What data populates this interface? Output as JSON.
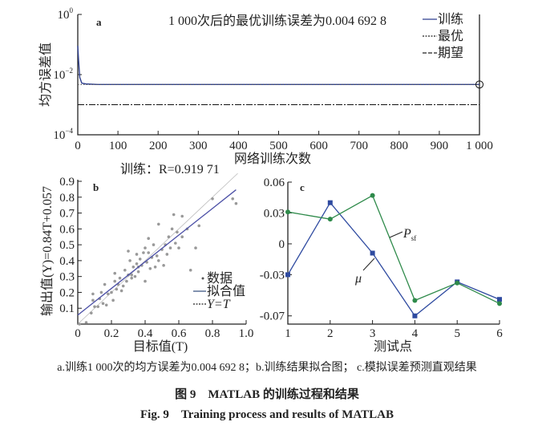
{
  "chart_data": [
    {
      "type": "line",
      "panel_label": "a",
      "title": "1 000次后的最优训练误差为0.004 692 8",
      "xlabel": "网络训练次数",
      "ylabel": "均方误差值",
      "xlim": [
        0,
        1000
      ],
      "xticks": [
        "0",
        "100",
        "200",
        "300",
        "400",
        "500",
        "600",
        "700",
        "800",
        "900",
        "1 000"
      ],
      "yscale": "log",
      "ylim": [
        0.0001,
        1
      ],
      "yticks": [
        {
          "base": "10",
          "exp": "0"
        },
        {
          "base": "10",
          "exp": "-2"
        },
        {
          "base": "10",
          "exp": "-4"
        }
      ],
      "legend": [
        "训练",
        "最优",
        "期望"
      ],
      "legend_position": "top-right",
      "series": [
        {
          "name": "训练",
          "color": "#2e3f8f",
          "x": [
            0,
            2,
            5,
            10,
            20,
            50,
            100,
            1000
          ],
          "y": [
            0.09,
            0.03,
            0.008,
            0.0052,
            0.0049,
            0.0047,
            0.0047,
            0.0046928
          ]
        },
        {
          "name": "最优",
          "style": "dotted",
          "y_const": 0.0046928
        },
        {
          "name": "期望",
          "style": "dash-dot",
          "y_const": 0.001
        }
      ],
      "best_marker": {
        "x": 1000,
        "y": 0.0046928
      }
    },
    {
      "type": "scatter",
      "panel_label": "b",
      "title": "训练：R=0.919 71",
      "xlabel": "目标值(T)",
      "ylabel": "输出值(Y)=0.84T+0.057",
      "xlim": [
        0,
        1.0
      ],
      "ylim": [
        0,
        0.9
      ],
      "xticks": [
        "0",
        "0.2",
        "0.4",
        "0.6",
        "0.8",
        "1.0"
      ],
      "yticks": [
        "0.1",
        "0.2",
        "0.3",
        "0.4",
        "0.5",
        "0.6",
        "0.7",
        "0.8",
        "0.9"
      ],
      "legend": [
        "数据",
        "拟合值",
        "Y=T"
      ],
      "legend_position": "bottom-right",
      "fit": {
        "slope": 0.84,
        "intercept": 0.057,
        "color": "#4b4fa6"
      },
      "points": [
        [
          0.01,
          0.0
        ],
        [
          0.05,
          0.01
        ],
        [
          0.08,
          0.07
        ],
        [
          0.09,
          0.15
        ],
        [
          0.09,
          0.19
        ],
        [
          0.1,
          0.11
        ],
        [
          0.12,
          0.11
        ],
        [
          0.13,
          0.16
        ],
        [
          0.14,
          0.2
        ],
        [
          0.15,
          0.13
        ],
        [
          0.16,
          0.25
        ],
        [
          0.17,
          0.12
        ],
        [
          0.18,
          0.19
        ],
        [
          0.2,
          0.2
        ],
        [
          0.21,
          0.15
        ],
        [
          0.22,
          0.27
        ],
        [
          0.22,
          0.32
        ],
        [
          0.23,
          0.22
        ],
        [
          0.24,
          0.25
        ],
        [
          0.25,
          0.29
        ],
        [
          0.26,
          0.21
        ],
        [
          0.27,
          0.24
        ],
        [
          0.28,
          0.34
        ],
        [
          0.29,
          0.27
        ],
        [
          0.3,
          0.31
        ],
        [
          0.3,
          0.46
        ],
        [
          0.31,
          0.4
        ],
        [
          0.32,
          0.29
        ],
        [
          0.33,
          0.36
        ],
        [
          0.34,
          0.3
        ],
        [
          0.35,
          0.38
        ],
        [
          0.35,
          0.44
        ],
        [
          0.36,
          0.33
        ],
        [
          0.37,
          0.41
        ],
        [
          0.38,
          0.37
        ],
        [
          0.39,
          0.45
        ],
        [
          0.4,
          0.27
        ],
        [
          0.4,
          0.48
        ],
        [
          0.41,
          0.39
        ],
        [
          0.42,
          0.45
        ],
        [
          0.42,
          0.54
        ],
        [
          0.43,
          0.35
        ],
        [
          0.44,
          0.42
        ],
        [
          0.45,
          0.5
        ],
        [
          0.46,
          0.36
        ],
        [
          0.47,
          0.43
        ],
        [
          0.48,
          0.63
        ],
        [
          0.48,
          0.4
        ],
        [
          0.5,
          0.47
        ],
        [
          0.51,
          0.37
        ],
        [
          0.52,
          0.5
        ],
        [
          0.53,
          0.44
        ],
        [
          0.54,
          0.55
        ],
        [
          0.55,
          0.48
        ],
        [
          0.56,
          0.6
        ],
        [
          0.57,
          0.69
        ],
        [
          0.58,
          0.51
        ],
        [
          0.59,
          0.58
        ],
        [
          0.6,
          0.48
        ],
        [
          0.62,
          0.68
        ],
        [
          0.62,
          0.55
        ],
        [
          0.65,
          0.6
        ],
        [
          0.67,
          0.34
        ],
        [
          0.7,
          0.48
        ],
        [
          0.72,
          0.62
        ],
        [
          0.8,
          0.79
        ],
        [
          0.92,
          0.79
        ],
        [
          0.94,
          0.76
        ],
        [
          0.32,
          0.31
        ],
        [
          0.36,
          0.36
        ]
      ]
    },
    {
      "type": "line",
      "panel_label": "c",
      "xlabel": "测试点",
      "ylabel": "",
      "x": [
        1,
        2,
        3,
        4,
        5,
        6
      ],
      "xticks": [
        "1",
        "2",
        "3",
        "4",
        "5",
        "6"
      ],
      "yticks": [
        {
          "v": 0.06,
          "label": "0.06"
        },
        {
          "v": 0.03,
          "label": "0.03"
        },
        {
          "v": 0,
          "label": "0"
        },
        {
          "v": -0.03,
          "label": "-0.03"
        },
        {
          "v": -0.07,
          "label": "-0.07"
        }
      ],
      "ylim": [
        -0.078,
        0.06
      ],
      "series": [
        {
          "name": "μ",
          "marker": "square",
          "color": "#2e4aa0",
          "values": [
            -0.03,
            0.04,
            -0.009,
            -0.07,
            -0.037,
            -0.054
          ]
        },
        {
          "name": "P",
          "subscript": "sf",
          "marker": "circle",
          "color": "#2e8a4a",
          "values": [
            0.031,
            0.024,
            0.047,
            -0.055,
            -0.038,
            -0.058
          ]
        }
      ]
    }
  ],
  "caption": {
    "sub": "a.训练1 000次的均方误差为0.004 692 8；b.训练结果拟合图； c.模拟误差预测直观结果",
    "zh": "图 9　MATLAB 的训练过程和结果",
    "en": "Fig. 9　Training process and results of MATLAB"
  }
}
